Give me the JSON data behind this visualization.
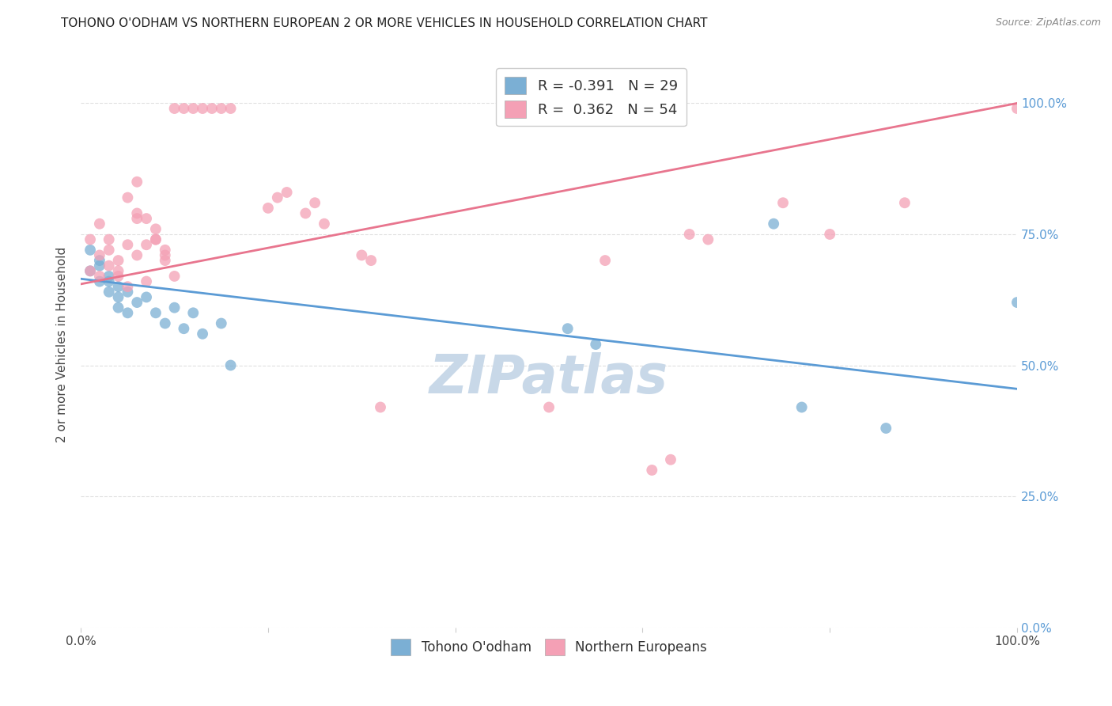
{
  "title": "TOHONO O'ODHAM VS NORTHERN EUROPEAN 2 OR MORE VEHICLES IN HOUSEHOLD CORRELATION CHART",
  "source": "Source: ZipAtlas.com",
  "ylabel": "2 or more Vehicles in Household",
  "watermark": "ZIPatlas",
  "legend_entries": [
    {
      "label": "R = -0.391   N = 29",
      "color": "#a8c4e0"
    },
    {
      "label": "R =  0.362   N = 54",
      "color": "#f4a8b8"
    }
  ],
  "legend_labels": [
    "Tohono O'odham",
    "Northern Europeans"
  ],
  "blue_points": [
    [
      0.01,
      0.68
    ],
    [
      0.01,
      0.72
    ],
    [
      0.02,
      0.7
    ],
    [
      0.02,
      0.66
    ],
    [
      0.02,
      0.69
    ],
    [
      0.03,
      0.67
    ],
    [
      0.03,
      0.64
    ],
    [
      0.03,
      0.66
    ],
    [
      0.04,
      0.63
    ],
    [
      0.04,
      0.65
    ],
    [
      0.04,
      0.61
    ],
    [
      0.05,
      0.6
    ],
    [
      0.05,
      0.64
    ],
    [
      0.06,
      0.62
    ],
    [
      0.07,
      0.63
    ],
    [
      0.08,
      0.6
    ],
    [
      0.09,
      0.58
    ],
    [
      0.1,
      0.61
    ],
    [
      0.11,
      0.57
    ],
    [
      0.12,
      0.6
    ],
    [
      0.13,
      0.56
    ],
    [
      0.15,
      0.58
    ],
    [
      0.16,
      0.5
    ],
    [
      0.52,
      0.57
    ],
    [
      0.55,
      0.54
    ],
    [
      0.74,
      0.77
    ],
    [
      0.77,
      0.42
    ],
    [
      0.86,
      0.38
    ],
    [
      1.0,
      0.62
    ]
  ],
  "pink_points": [
    [
      0.01,
      0.68
    ],
    [
      0.01,
      0.74
    ],
    [
      0.02,
      0.71
    ],
    [
      0.02,
      0.67
    ],
    [
      0.02,
      0.77
    ],
    [
      0.03,
      0.72
    ],
    [
      0.03,
      0.74
    ],
    [
      0.03,
      0.69
    ],
    [
      0.04,
      0.7
    ],
    [
      0.04,
      0.67
    ],
    [
      0.04,
      0.68
    ],
    [
      0.05,
      0.65
    ],
    [
      0.05,
      0.73
    ],
    [
      0.05,
      0.82
    ],
    [
      0.06,
      0.85
    ],
    [
      0.06,
      0.78
    ],
    [
      0.06,
      0.79
    ],
    [
      0.06,
      0.71
    ],
    [
      0.07,
      0.78
    ],
    [
      0.07,
      0.66
    ],
    [
      0.07,
      0.73
    ],
    [
      0.08,
      0.74
    ],
    [
      0.08,
      0.76
    ],
    [
      0.08,
      0.74
    ],
    [
      0.09,
      0.71
    ],
    [
      0.09,
      0.7
    ],
    [
      0.09,
      0.72
    ],
    [
      0.1,
      0.67
    ],
    [
      0.1,
      0.99
    ],
    [
      0.11,
      0.99
    ],
    [
      0.12,
      0.99
    ],
    [
      0.13,
      0.99
    ],
    [
      0.14,
      0.99
    ],
    [
      0.15,
      0.99
    ],
    [
      0.16,
      0.99
    ],
    [
      0.2,
      0.8
    ],
    [
      0.21,
      0.82
    ],
    [
      0.22,
      0.83
    ],
    [
      0.24,
      0.79
    ],
    [
      0.25,
      0.81
    ],
    [
      0.26,
      0.77
    ],
    [
      0.3,
      0.71
    ],
    [
      0.31,
      0.7
    ],
    [
      0.32,
      0.42
    ],
    [
      0.5,
      0.42
    ],
    [
      0.56,
      0.7
    ],
    [
      0.61,
      0.3
    ],
    [
      0.63,
      0.32
    ],
    [
      0.65,
      0.75
    ],
    [
      0.67,
      0.74
    ],
    [
      0.75,
      0.81
    ],
    [
      0.8,
      0.75
    ],
    [
      0.88,
      0.81
    ],
    [
      1.0,
      0.99
    ]
  ],
  "blue_line": {
    "x0": 0.0,
    "y0": 0.665,
    "x1": 1.0,
    "y1": 0.455
  },
  "pink_line": {
    "x0": 0.0,
    "y0": 0.655,
    "x1": 1.0,
    "y1": 1.0
  },
  "xlim": [
    0,
    1.0
  ],
  "ylim": [
    0.0,
    1.08
  ],
  "yticks": [
    0.0,
    0.25,
    0.5,
    0.75,
    1.0
  ],
  "ytick_labels": [
    "0.0%",
    "25.0%",
    "50.0%",
    "75.0%",
    "100.0%"
  ],
  "xtick_positions": [
    0.0,
    0.2,
    0.4,
    0.6,
    0.8,
    1.0
  ],
  "xtick_labels": [
    "0.0%",
    "",
    "",
    "",
    "",
    "100.0%"
  ],
  "blue_color": "#7bafd4",
  "pink_color": "#f4a0b5",
  "blue_line_color": "#5b9bd5",
  "pink_line_color": "#e8758e",
  "title_fontsize": 11,
  "source_fontsize": 9,
  "watermark_color": "#c8d8e8",
  "watermark_fontsize": 48,
  "axis_label_color": "#5b9bd5",
  "grid_color": "#e0e0e0"
}
